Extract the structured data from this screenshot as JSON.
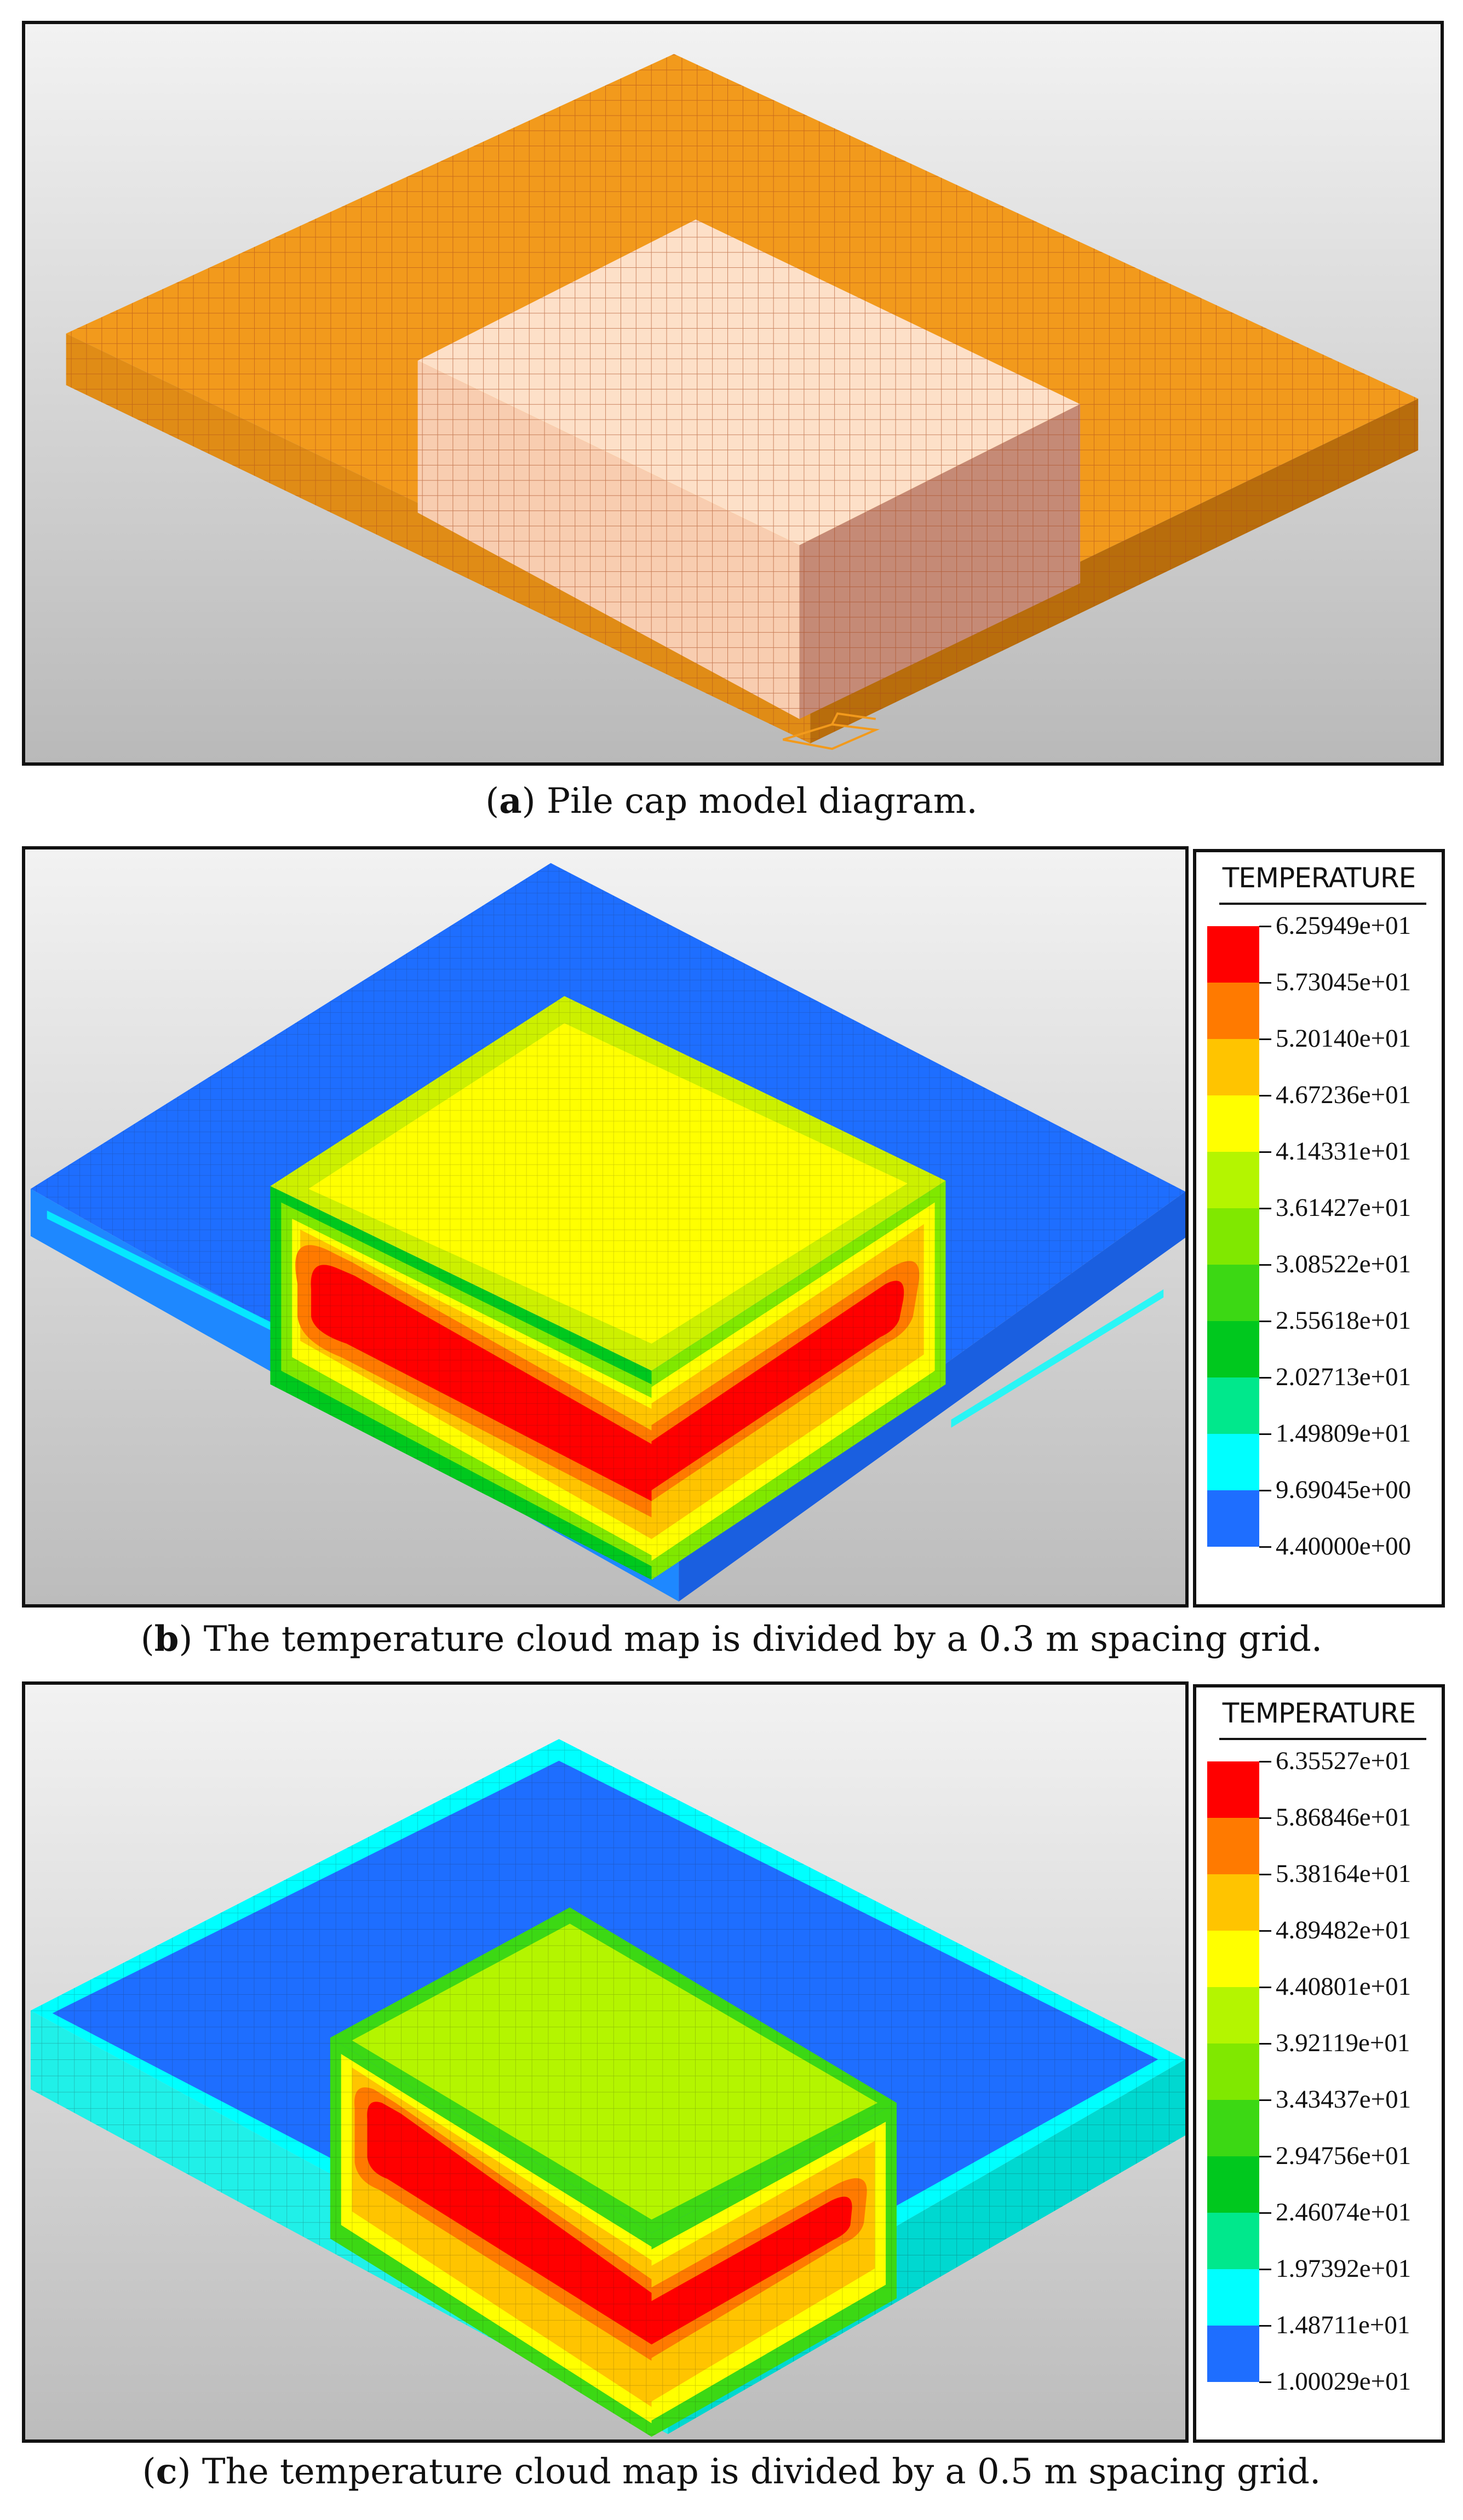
{
  "colors": {
    "model_slab_top": "#f29a1c",
    "model_slab_side": "#c9780e",
    "model_block_top": "#fde0c8",
    "model_block_front": "#f8cdb0",
    "model_block_right": "#c58a76",
    "model_grid": "#a8471c"
  },
  "panels": [
    {
      "id": "a",
      "caption_letter": "a",
      "caption_text": "Pile cap model diagram."
    },
    {
      "id": "b",
      "caption_letter": "b",
      "caption_text": "The temperature cloud map is divided by a 0.3 m spacing grid.",
      "legend": {
        "title": "TEMPERATURE",
        "labels": [
          "6.25949e+01",
          "5.73045e+01",
          "5.20140e+01",
          "4.67236e+01",
          "4.14331e+01",
          "3.61427e+01",
          "3.08522e+01",
          "2.55618e+01",
          "2.02713e+01",
          "1.49809e+01",
          "9.69045e+00",
          "4.40000e+00"
        ],
        "colors": [
          "#ff0000",
          "#ff7a00",
          "#ffc400",
          "#ffff00",
          "#b4f500",
          "#80e800",
          "#3cd814",
          "#00c81e",
          "#00e88c",
          "#00ffff",
          "#1e6eff"
        ]
      }
    },
    {
      "id": "c",
      "caption_letter": "c",
      "caption_text": "The temperature cloud map is divided by a 0.5 m spacing grid.",
      "legend": {
        "title": "TEMPERATURE",
        "labels": [
          "6.35527e+01",
          "5.86846e+01",
          "5.38164e+01",
          "4.89482e+01",
          "4.40801e+01",
          "3.92119e+01",
          "3.43437e+01",
          "2.94756e+01",
          "2.46074e+01",
          "1.97392e+01",
          "1.48711e+01",
          "1.00029e+01"
        ],
        "colors": [
          "#ff0000",
          "#ff7a00",
          "#ffc400",
          "#ffff00",
          "#b4f500",
          "#80e800",
          "#3cd814",
          "#00c81e",
          "#00e88c",
          "#00ffff",
          "#1e6eff"
        ]
      }
    }
  ]
}
